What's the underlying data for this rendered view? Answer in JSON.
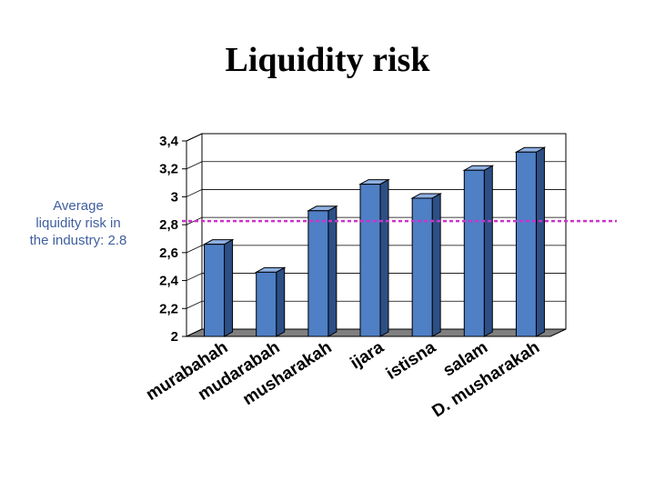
{
  "chart_data": {
    "type": "bar",
    "title": "Liquidity risk",
    "categories": [
      "murabahah",
      "mudarabah",
      "musharakah",
      "ijara",
      "istisna",
      "salam",
      "D. musharakah"
    ],
    "values": [
      2.66,
      2.46,
      2.9,
      3.09,
      2.99,
      3.19,
      3.32
    ],
    "ylim": [
      2,
      3.4
    ],
    "yticks": [
      "2",
      "2,2",
      "2,4",
      "2,6",
      "2,8",
      "3",
      "3,2",
      "3,4"
    ],
    "grid": true,
    "bar_color": "#4f7fc5",
    "reference_line": {
      "value": 2.8,
      "color": "#cc33cc",
      "label_lines": [
        "Average",
        "liquidity risk in",
        "the industry: 2.8"
      ]
    }
  }
}
